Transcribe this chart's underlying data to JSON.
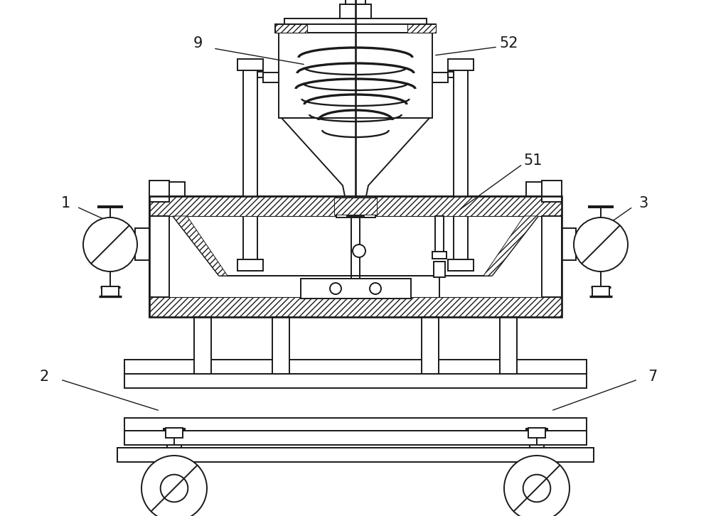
{
  "bg_color": "#ffffff",
  "line_color": "#1a1a1a",
  "label_fontsize": 15,
  "line_width": 1.4,
  "fig_width": 10.0,
  "fig_height": 7.26
}
